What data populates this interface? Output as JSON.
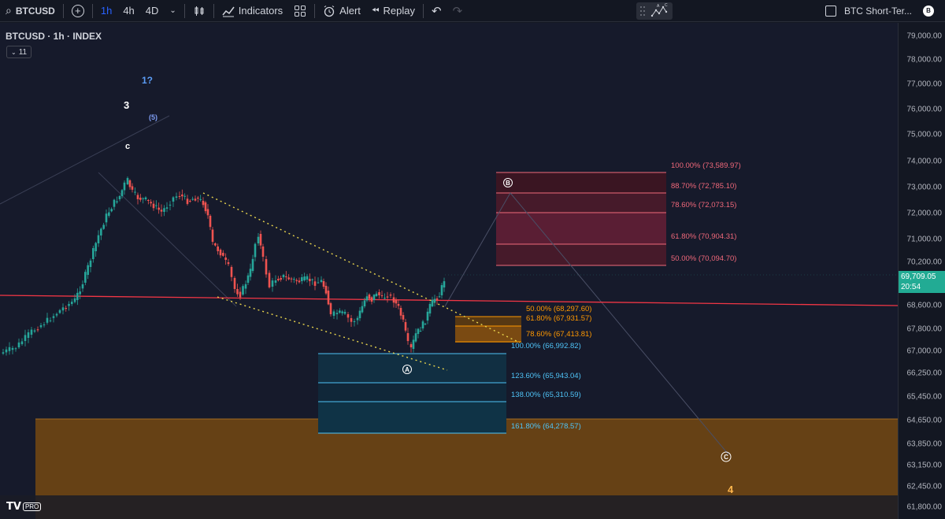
{
  "toolbar": {
    "symbol": "BTCUSD",
    "intervals": [
      "1h",
      "4h",
      "4D"
    ],
    "active_interval": "1h",
    "indicators_label": "Indicators",
    "alert_label": "Alert",
    "replay_label": "Replay",
    "layout_name": "BTC Short-Ter..."
  },
  "legend": {
    "title": "BTCUSD · 1h · INDEX",
    "badge": "11"
  },
  "price_axis": {
    "ticks": [
      "79,000.00",
      "78,000.00",
      "77,000.00",
      "76,000.00",
      "75,000.00",
      "74,000.00",
      "73,000.00",
      "72,000.00",
      "71,000.00",
      "70,200.00",
      "68,600.00",
      "67,800.00",
      "67,000.00",
      "66,250.00",
      "65,450.00",
      "64,650.00",
      "63,850.00",
      "63,150.00",
      "62,450.00",
      "61,800.00"
    ],
    "last_price": "69,709.05",
    "countdown": "20:54"
  },
  "wave_labels": {
    "w1": "1?",
    "w3": "3",
    "w5": "(5)",
    "wc_small": "c",
    "wA": "A",
    "wB": "B",
    "wC": "C",
    "w4": "4"
  },
  "fib_b": [
    "100.00% (73,589.97)",
    "88.70% (72,785.10)",
    "78.60% (72,073.15)",
    "61.80% (70,904.31)",
    "50.00% (70,094.70)"
  ],
  "fib_orange": [
    "50.00% (68,297.60)",
    "61.80% (67,931.57)",
    "78.60% (67,413.81)"
  ],
  "fib_blue": [
    "100.00% (66,992.82)",
    "123.60% (65,943.04)",
    "138.00% (65,310.59)",
    "161.80% (64,278.57)"
  ],
  "colors": {
    "bull": "#26a69a",
    "bear": "#ef5350",
    "fib_b": "#f23645",
    "fib_orange": "#ff9800",
    "fib_blue": "#4fc3f7",
    "support_zone": "#7a4a12",
    "resistance_line": "#f23645"
  },
  "logo": {
    "mark": "TV",
    "pro": "PRO"
  }
}
